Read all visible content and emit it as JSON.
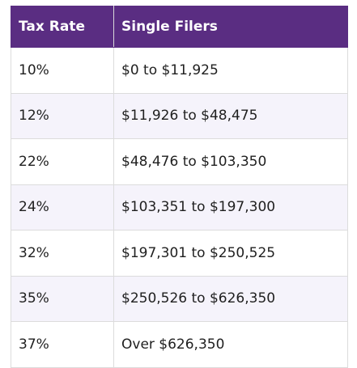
{
  "table": {
    "headers": [
      "Tax Rate",
      "Single Filers"
    ],
    "rows": [
      [
        "10%",
        "$0 to $11,925"
      ],
      [
        "12%",
        "$11,926 to $48,475"
      ],
      [
        "22%",
        "$48,476 to $103,350"
      ],
      [
        "24%",
        "$103,351 to $197,300"
      ],
      [
        "32%",
        "$197,301 to $250,525"
      ],
      [
        "35%",
        "$250,526 to $626,350"
      ],
      [
        "37%",
        "Over $626,350"
      ]
    ]
  },
  "colors": {
    "header_bg": "#5a2d82",
    "header_text": "#ffffff",
    "stripe_bg": "#f5f3fb",
    "border": "#dcdcdc"
  }
}
